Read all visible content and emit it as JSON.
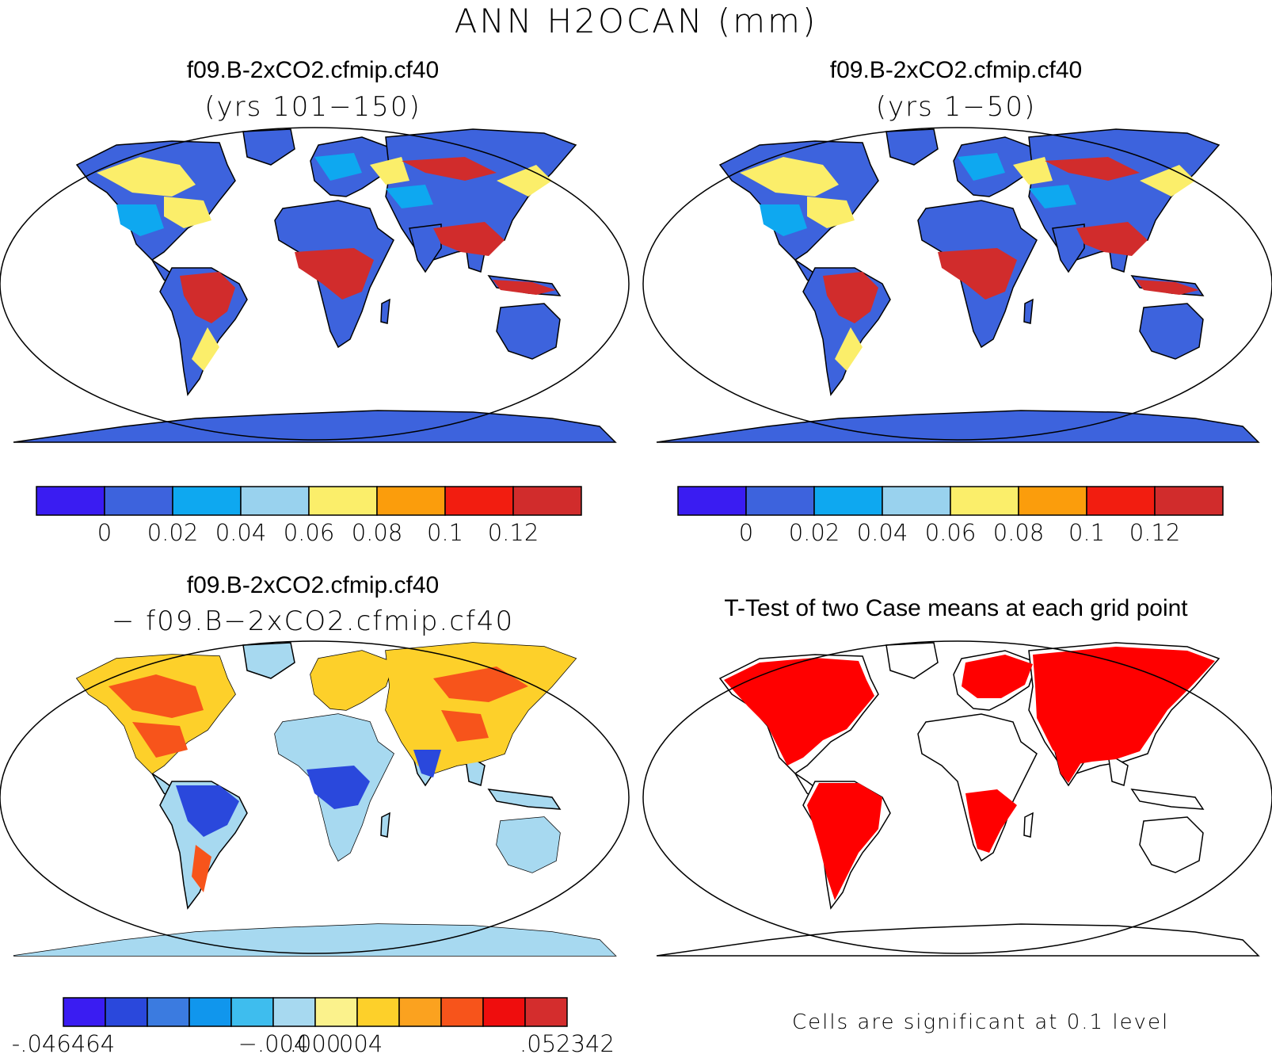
{
  "title": "ANN H2OCAN (mm)",
  "colors": {
    "c_neg": "#3a1cf2",
    "c0": "#3d63dd",
    "c1": "#0ea8f0",
    "c2": "#99d2ee",
    "c3": "#fbee6a",
    "c4": "#fb9d0c",
    "c5": "#f21d10",
    "c6": "#d12c2c",
    "d0": "#3a1cf2",
    "d1": "#2a48dc",
    "d2": "#3b7be0",
    "d3": "#1096ed",
    "d4": "#3ebdee",
    "d5": "#a7d9f0",
    "d6": "#fbf28c",
    "d7": "#fdd02a",
    "d8": "#fba21f",
    "d9": "#f7541b",
    "d10": "#ef0d0d",
    "d11": "#d42d2d",
    "sig": "#ff0000"
  },
  "panels": [
    {
      "id": "top-left",
      "title": "f09.B-2xCO2.cfmip.cf40",
      "subtitle": "(yrs 101−150)",
      "colorbar_labels": [
        "0",
        "0.02",
        "0.04",
        "0.06",
        "0.08",
        "0.1",
        "0.12"
      ]
    },
    {
      "id": "top-right",
      "title": "f09.B-2xCO2.cfmip.cf40",
      "subtitle": "(yrs 1−50)",
      "colorbar_labels": [
        "0",
        "0.02",
        "0.04",
        "0.06",
        "0.08",
        "0.1",
        "0.12"
      ]
    },
    {
      "id": "bottom-left",
      "title": "f09.B-2xCO2.cfmip.cf40",
      "subtitle": "− f09.B−2xCO2.cfmip.cf40",
      "colorbar_labels": [
        "-.046464",
        "−.004",
        ".000",
        ".004",
        ".052342"
      ]
    },
    {
      "id": "bottom-right",
      "title": "T-Test of two Case means at each grid point",
      "note": "Cells are significant at 0.1 level"
    }
  ]
}
